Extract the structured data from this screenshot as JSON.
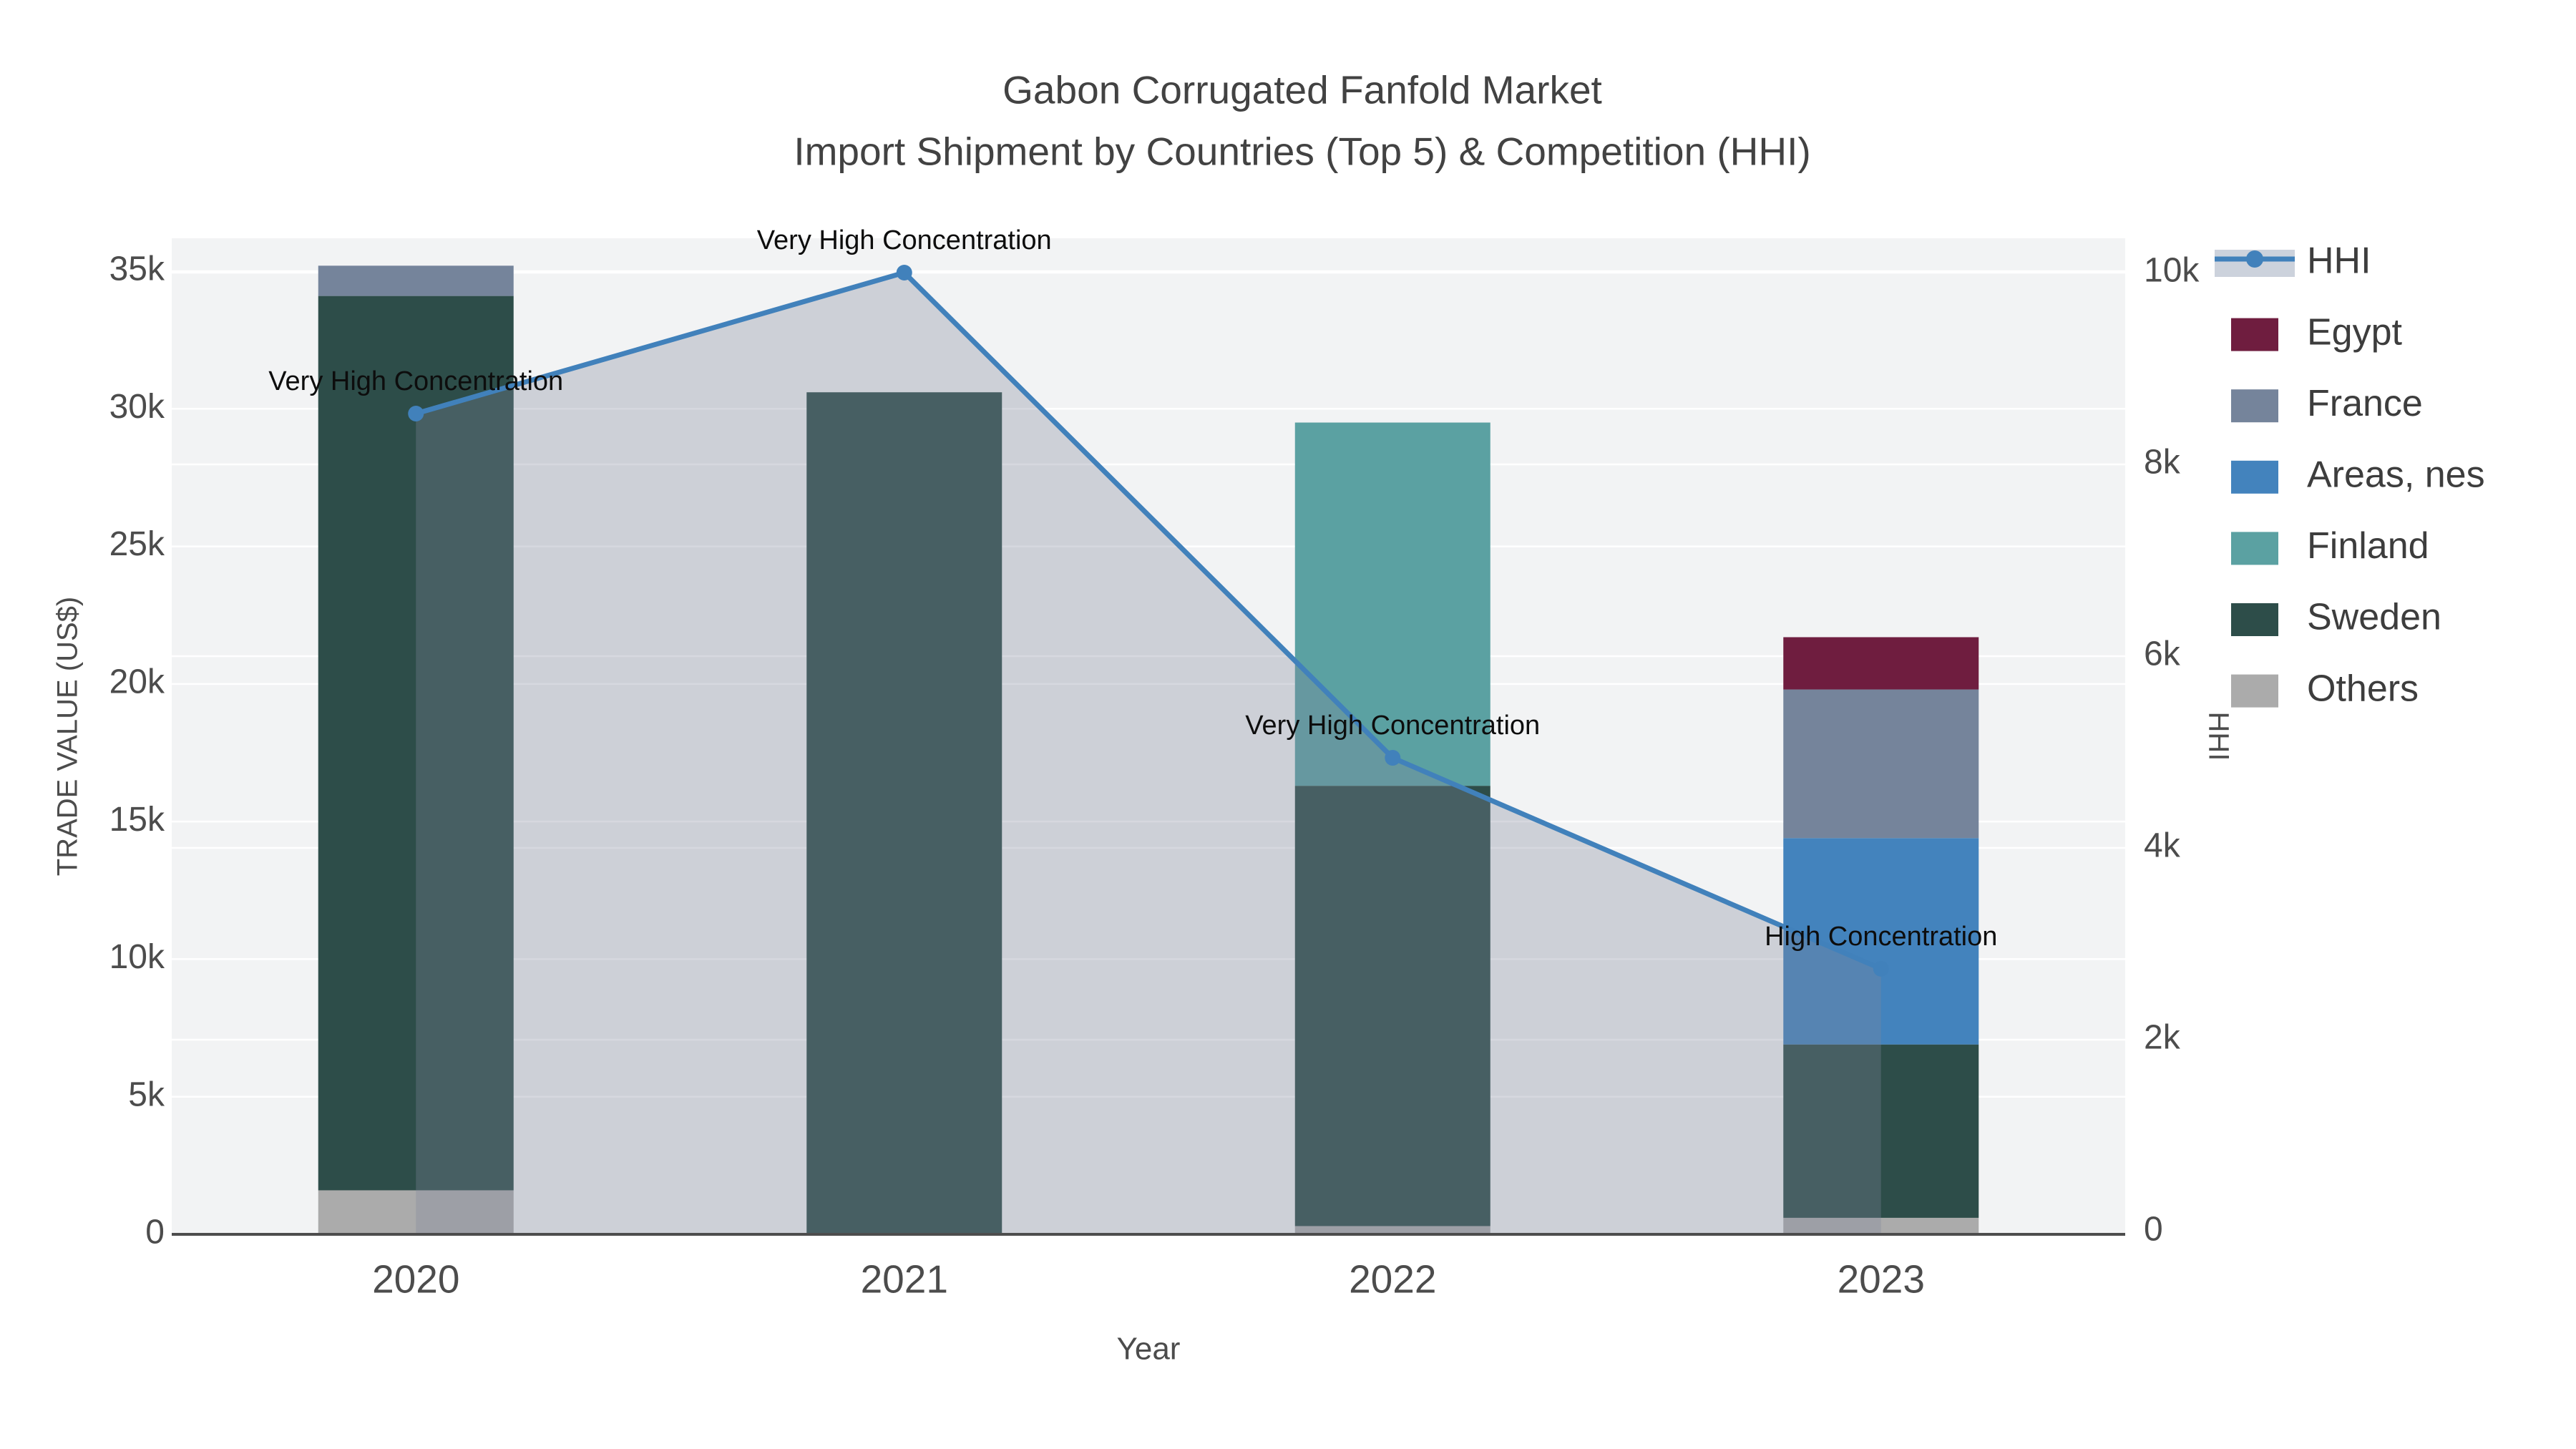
{
  "title": {
    "line1": "Gabon Corrugated Fanfold Market",
    "line2": "Import Shipment by Countries (Top 5) & Competition (HHI)"
  },
  "axes": {
    "x": {
      "title": "Year",
      "ticks": [
        "2020",
        "2021",
        "2022",
        "2023"
      ]
    },
    "y_left": {
      "title": "TRADE VALUE (US$)",
      "tick_labels": [
        "0",
        "5k",
        "10k",
        "15k",
        "20k",
        "25k",
        "30k",
        "35k"
      ],
      "tick_values": [
        0,
        5000,
        10000,
        15000,
        20000,
        25000,
        30000,
        35000
      ],
      "range": [
        0,
        35000
      ]
    },
    "y_right": {
      "title": "HHI",
      "tick_labels": [
        "0",
        "2k",
        "4k",
        "6k",
        "8k",
        "10k"
      ],
      "tick_values": [
        0,
        2000,
        4000,
        6000,
        8000,
        10000
      ],
      "range": [
        0,
        10000
      ]
    }
  },
  "legend": {
    "position": "right",
    "items": [
      {
        "label": "HHI",
        "type": "line",
        "color": "#4181bb",
        "band": "#ccd2dc"
      },
      {
        "label": "Egypt",
        "type": "box",
        "color": "#6f1d3f"
      },
      {
        "label": "France",
        "type": "box",
        "color": "#75849b"
      },
      {
        "label": "Areas, nes",
        "type": "box",
        "color": "#4383bd"
      },
      {
        "label": "Finland",
        "type": "box",
        "color": "#5ba1a2"
      },
      {
        "label": "Sweden",
        "type": "box",
        "color": "#2d4d49"
      },
      {
        "label": "Others",
        "type": "box",
        "color": "#ababab"
      }
    ]
  },
  "chart_data": {
    "type": "bar",
    "subtype": "stacked bars (left axis) + line with area fill (right axis)",
    "title": "Gabon Corrugated Fanfold Market — Import Shipment by Countries (Top 5) & Competition (HHI)",
    "xlabel": "Year",
    "ylabel": "TRADE VALUE (US$)",
    "ylabel_right": "HHI",
    "ylim_left": [
      0,
      35000
    ],
    "ylim_right": [
      0,
      10000
    ],
    "grid": true,
    "legend_position": "right",
    "categories": [
      "2020",
      "2021",
      "2022",
      "2023"
    ],
    "series": [
      {
        "name": "Others",
        "color": "#ababab",
        "values": [
          1600,
          0,
          300,
          600
        ]
      },
      {
        "name": "Sweden",
        "color": "#2d4d49",
        "values": [
          32500,
          30600,
          16000,
          6300
        ]
      },
      {
        "name": "Finland",
        "color": "#5ba1a2",
        "values": [
          0,
          0,
          13200,
          0
        ]
      },
      {
        "name": "Areas, nes",
        "color": "#4383bd",
        "values": [
          0,
          0,
          0,
          7500
        ]
      },
      {
        "name": "France",
        "color": "#75849b",
        "values": [
          1100,
          0,
          0,
          5400
        ]
      },
      {
        "name": "Egypt",
        "color": "#6f1d3f",
        "values": [
          0,
          0,
          0,
          1900
        ]
      }
    ],
    "bar_totals": [
      35200,
      30600,
      29500,
      21700
    ],
    "line_series": {
      "name": "HHI",
      "axis": "right",
      "color": "#4181bb",
      "area_fill": "rgba(126,134,156,0.32)",
      "values": [
        8530,
        10000,
        4940,
        2740
      ]
    },
    "annotations": [
      {
        "category": "2020",
        "text": "Very High Concentration"
      },
      {
        "category": "2021",
        "text": "Very High Concentration"
      },
      {
        "category": "2022",
        "text": "Very High Concentration"
      },
      {
        "category": "2023",
        "text": "High Concentration"
      }
    ]
  },
  "colors": {
    "plot_bg": "#f2f3f4",
    "gridline": "#ffffff",
    "axis_line": "#4d4d4d",
    "accent_line": "#4181bb"
  }
}
